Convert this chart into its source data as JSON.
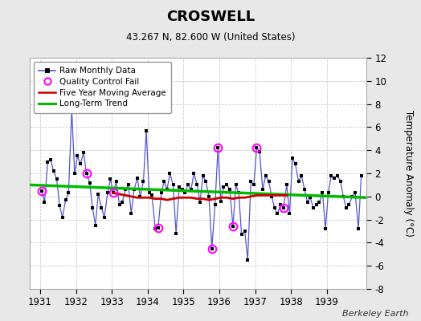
{
  "title": "CROSWELL",
  "subtitle": "43.267 N, 82.600 W (United States)",
  "ylabel": "Temperature Anomaly (°C)",
  "credit": "Berkeley Earth",
  "bg_color": "#e8e8e8",
  "plot_bg_color": "#ffffff",
  "ylim": [
    -8,
    12
  ],
  "yticks": [
    -8,
    -6,
    -4,
    -2,
    0,
    2,
    4,
    6,
    8,
    10,
    12
  ],
  "xlim": [
    1930.7,
    1940.1
  ],
  "xticks": [
    1931,
    1932,
    1933,
    1934,
    1935,
    1936,
    1937,
    1938,
    1939
  ],
  "raw_x": [
    1931.04,
    1931.12,
    1931.21,
    1931.29,
    1931.37,
    1931.46,
    1931.54,
    1931.62,
    1931.71,
    1931.79,
    1931.88,
    1931.96,
    1932.04,
    1932.12,
    1932.21,
    1932.29,
    1932.38,
    1932.46,
    1932.54,
    1932.62,
    1932.71,
    1932.79,
    1932.88,
    1932.96,
    1933.04,
    1933.12,
    1933.21,
    1933.29,
    1933.38,
    1933.46,
    1933.54,
    1933.62,
    1933.71,
    1933.79,
    1933.88,
    1933.96,
    1934.04,
    1934.12,
    1934.21,
    1934.29,
    1934.38,
    1934.46,
    1934.54,
    1934.62,
    1934.71,
    1934.79,
    1934.88,
    1934.96,
    1935.04,
    1935.12,
    1935.21,
    1935.29,
    1935.38,
    1935.46,
    1935.54,
    1935.62,
    1935.71,
    1935.79,
    1935.88,
    1935.96,
    1936.04,
    1936.12,
    1936.21,
    1936.29,
    1936.38,
    1936.46,
    1936.54,
    1936.62,
    1936.71,
    1936.79,
    1936.88,
    1936.96,
    1937.04,
    1937.12,
    1937.21,
    1937.29,
    1937.38,
    1937.46,
    1937.54,
    1937.62,
    1937.71,
    1937.79,
    1937.88,
    1937.96,
    1938.04,
    1938.12,
    1938.21,
    1938.29,
    1938.38,
    1938.46,
    1938.54,
    1938.62,
    1938.71,
    1938.79,
    1938.88,
    1938.96,
    1939.04,
    1939.12,
    1939.21,
    1939.29,
    1939.38,
    1939.46,
    1939.54,
    1939.62,
    1939.71,
    1939.79,
    1939.88,
    1939.96
  ],
  "raw_y": [
    0.5,
    -0.5,
    3.0,
    3.2,
    2.2,
    1.5,
    -0.8,
    -1.8,
    -0.3,
    0.3,
    7.5,
    2.0,
    3.5,
    2.8,
    3.8,
    2.0,
    1.2,
    -1.0,
    -2.5,
    0.2,
    -1.0,
    -1.8,
    0.3,
    1.5,
    0.3,
    1.3,
    -0.7,
    -0.5,
    0.6,
    1.0,
    -1.5,
    0.6,
    1.6,
    0.0,
    1.3,
    5.7,
    0.3,
    0.1,
    -2.8,
    -2.7,
    0.3,
    1.3,
    0.6,
    2.0,
    1.0,
    -3.2,
    0.8,
    0.6,
    0.3,
    1.0,
    0.6,
    2.0,
    1.0,
    -0.5,
    1.8,
    1.3,
    0.0,
    -4.5,
    -0.7,
    4.2,
    -0.4,
    0.8,
    1.0,
    0.6,
    -2.6,
    1.0,
    0.3,
    -3.3,
    -3.0,
    -5.5,
    1.3,
    1.0,
    4.2,
    3.9,
    0.6,
    1.8,
    1.3,
    0.0,
    -1.0,
    -1.5,
    -0.7,
    -1.0,
    1.0,
    -1.5,
    3.3,
    2.8,
    1.3,
    1.8,
    0.6,
    -0.5,
    -0.1,
    -1.0,
    -0.7,
    -0.5,
    0.3,
    -2.8,
    0.3,
    1.8,
    1.6,
    1.8,
    1.3,
    0.0,
    -1.0,
    -0.7,
    0.0,
    0.3,
    -2.8,
    1.8
  ],
  "qc_fail_x": [
    1931.04,
    1932.29,
    1933.04,
    1934.29,
    1935.79,
    1935.96,
    1936.38,
    1937.04,
    1937.79
  ],
  "qc_fail_y": [
    0.5,
    2.0,
    0.3,
    -2.7,
    -4.5,
    4.2,
    -2.6,
    4.2,
    -1.0
  ],
  "moving_avg_x": [
    1933.04,
    1933.21,
    1933.38,
    1933.54,
    1933.71,
    1933.88,
    1934.04,
    1934.21,
    1934.38,
    1934.54,
    1934.71,
    1934.88,
    1935.04,
    1935.21,
    1935.38,
    1935.54,
    1935.71,
    1935.88,
    1936.04,
    1936.21,
    1936.38,
    1936.54,
    1936.71,
    1936.88,
    1937.04,
    1937.21,
    1937.38,
    1937.54,
    1937.71,
    1937.88
  ],
  "moving_avg_y": [
    0.3,
    0.2,
    0.1,
    0.0,
    -0.1,
    -0.1,
    -0.1,
    -0.2,
    -0.2,
    -0.3,
    -0.2,
    -0.1,
    -0.1,
    -0.1,
    -0.2,
    -0.2,
    -0.3,
    -0.2,
    -0.1,
    -0.1,
    -0.2,
    -0.1,
    -0.1,
    0.0,
    0.1,
    0.1,
    0.1,
    0.1,
    0.1,
    0.1
  ],
  "trend_x": [
    1930.7,
    1940.1
  ],
  "trend_y": [
    1.0,
    -0.1
  ],
  "raw_color": "#5555cc",
  "raw_marker_color": "#000000",
  "qc_color": "#ff00ff",
  "moving_avg_color": "#cc0000",
  "trend_color": "#00bb00",
  "grid_color": "#cccccc",
  "grid_style": "--"
}
